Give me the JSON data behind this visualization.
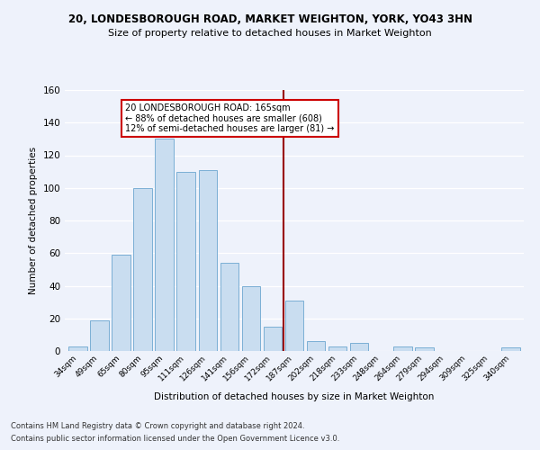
{
  "title1": "20, LONDESBOROUGH ROAD, MARKET WEIGHTON, YORK, YO43 3HN",
  "title2": "Size of property relative to detached houses in Market Weighton",
  "xlabel": "Distribution of detached houses by size in Market Weighton",
  "ylabel": "Number of detached properties",
  "categories": [
    "34sqm",
    "49sqm",
    "65sqm",
    "80sqm",
    "95sqm",
    "111sqm",
    "126sqm",
    "141sqm",
    "156sqm",
    "172sqm",
    "187sqm",
    "202sqm",
    "218sqm",
    "233sqm",
    "248sqm",
    "264sqm",
    "279sqm",
    "294sqm",
    "309sqm",
    "325sqm",
    "340sqm"
  ],
  "values": [
    3,
    19,
    59,
    100,
    130,
    110,
    111,
    54,
    40,
    15,
    31,
    6,
    3,
    5,
    0,
    3,
    2,
    0,
    0,
    0,
    2
  ],
  "bar_color": "#c9ddf0",
  "bar_edge_color": "#7bafd4",
  "vline_x": 9.5,
  "vline_color": "#990000",
  "annotation_line1": "20 LONDESBOROUGH ROAD: 165sqm",
  "annotation_line2": "← 88% of detached houses are smaller (608)",
  "annotation_line3": "12% of semi-detached houses are larger (81) →",
  "annotation_box_color": "#ffffff",
  "annotation_box_edge": "#cc0000",
  "ylim": [
    0,
    160
  ],
  "yticks": [
    0,
    20,
    40,
    60,
    80,
    100,
    120,
    140,
    160
  ],
  "footer1": "Contains HM Land Registry data © Crown copyright and database right 2024.",
  "footer2": "Contains public sector information licensed under the Open Government Licence v3.0.",
  "bg_color": "#eef2fb",
  "grid_color": "#ffffff"
}
